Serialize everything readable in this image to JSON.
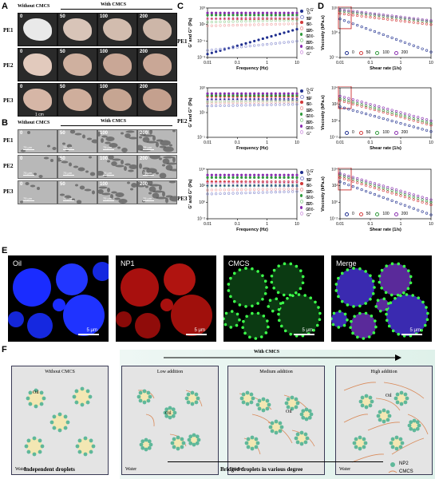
{
  "panels": {
    "A": {
      "label": "A",
      "header_left": "Without CMCS",
      "header_right": "With CMCS",
      "rows": [
        "PE1",
        "PE2",
        "PE3"
      ],
      "cols": [
        "0",
        "50",
        "100",
        "200"
      ],
      "scale": "1 cm"
    },
    "B": {
      "label": "B",
      "header_left": "Without CMCS",
      "header_right": "With CMCS",
      "rows": [
        "PE1",
        "PE2",
        "PE3"
      ],
      "cols": [
        "0",
        "50",
        "100",
        "200"
      ],
      "scale": "75 μm"
    },
    "C": {
      "label": "C"
    },
    "D": {
      "label": "D"
    },
    "E": {
      "label": "E",
      "images": [
        "Oil",
        "NP1",
        "CMCS",
        "Merge"
      ],
      "scale": "5 μm"
    },
    "F": {
      "label": "F",
      "arrow_label": "With CMCS",
      "stages": [
        "Without CMCS",
        "Low addition",
        "Medium addition",
        "High addition"
      ],
      "oil": "Oil",
      "water": "Water",
      "caption_left": "Independent droplets",
      "caption_right": "Bridged droplets in various degree",
      "legend": [
        "NP2",
        "CMCS"
      ]
    }
  },
  "colors": {
    "dark_blue": "#1f2f8f",
    "light_blue": "#8a8fd0",
    "red": "#d23a3a",
    "pink": "#f0a6a6",
    "green": "#2f9a3a",
    "light_green": "#9ad39a",
    "purple": "#8a2fb0",
    "lilac": "#d7a6e6",
    "np": "#5fb89a",
    "oil_fill": "#f3e7b3",
    "cmcs": "#d98a5a"
  },
  "chart_data": [
    {
      "type": "scatter",
      "panel": "C",
      "row": "PE1",
      "xscale": "log",
      "yscale": "log",
      "xlabel": "Frequency (Hz)",
      "ylabel": "G' and G'' (Pa)",
      "xlim": [
        0.01,
        10
      ],
      "ylim": [
        0.001,
        10000
      ],
      "xticks": [
        "0.01",
        "0.1",
        "1",
        "10"
      ],
      "yticks": [
        "10⁻³",
        "10⁻¹",
        "10¹",
        "10³"
      ],
      "legend": [
        "0-G'",
        "0-G''",
        "50-G'",
        "50-G''",
        "100-G'",
        "100-G''",
        "200-G'",
        "200-G''"
      ],
      "series": [
        {
          "name": "0-G'",
          "values": [
            0.003,
            10
          ]
        },
        {
          "name": "0-G''",
          "values": [
            0.01,
            0.2
          ]
        },
        {
          "name": "50-G'",
          "values": [
            300,
            300
          ]
        },
        {
          "name": "50-G''",
          "values": [
            30,
            60
          ]
        },
        {
          "name": "100-G'",
          "values": [
            1000,
            1000
          ]
        },
        {
          "name": "100-G''",
          "values": [
            100,
            200
          ]
        },
        {
          "name": "200-G'",
          "values": [
            2000,
            2000
          ]
        },
        {
          "name": "200-G''",
          "values": [
            300,
            500
          ]
        }
      ]
    },
    {
      "type": "scatter",
      "panel": "C",
      "row": "PE2",
      "xscale": "log",
      "yscale": "log",
      "xlabel": "Frequency (Hz)",
      "ylabel": "G' and G'' (Pa)",
      "xlim": [
        0.01,
        10
      ],
      "ylim": [
        0.1,
        100
      ],
      "xticks": [
        "0.01",
        "0.1",
        "1",
        "10"
      ],
      "yticks": [
        "10⁻¹",
        "10¹",
        "10²"
      ],
      "legend": [
        "0-G'",
        "0-G''",
        "50-G'",
        "50-G''",
        "100-G'",
        "100-G''",
        "200-G'",
        "200-G''"
      ],
      "series": [
        {
          "name": "0-G'",
          "values": [
            20,
            20
          ]
        },
        {
          "name": "0-G''",
          "values": [
            8,
            10
          ]
        },
        {
          "name": "50-G'",
          "values": [
            30,
            30
          ]
        },
        {
          "name": "50-G''",
          "values": [
            12,
            14
          ]
        },
        {
          "name": "100-G'",
          "values": [
            35,
            35
          ]
        },
        {
          "name": "100-G''",
          "values": [
            15,
            17
          ]
        },
        {
          "name": "200-G'",
          "values": [
            45,
            45
          ]
        },
        {
          "name": "200-G''",
          "values": [
            20,
            22
          ]
        }
      ]
    },
    {
      "type": "scatter",
      "panel": "C",
      "row": "PE3",
      "xscale": "log",
      "yscale": "log",
      "xlabel": "Frequency (Hz)",
      "ylabel": "G' and G'' (Pa)",
      "xlim": [
        0.01,
        10
      ],
      "ylim": [
        0.01,
        10000
      ],
      "xticks": [
        "0.01",
        "0.1",
        "1",
        "10"
      ],
      "yticks": [
        "10⁻²",
        "10⁰",
        "10²",
        "10⁴"
      ],
      "legend": [
        "0-G'",
        "0-G''",
        "50-G'",
        "50-G''",
        "100-G'",
        "100-G''",
        "200-G'",
        "200-G''"
      ],
      "series": [
        {
          "name": "0-G'",
          "values": [
            100,
            100
          ]
        },
        {
          "name": "0-G''",
          "values": [
            10,
            20
          ]
        },
        {
          "name": "50-G'",
          "values": [
            300,
            300
          ]
        },
        {
          "name": "50-G''",
          "values": [
            30,
            40
          ]
        },
        {
          "name": "100-G'",
          "values": [
            1000,
            1000
          ]
        },
        {
          "name": "100-G''",
          "values": [
            100,
            120
          ]
        },
        {
          "name": "200-G'",
          "values": [
            2000,
            2000
          ]
        },
        {
          "name": "200-G''",
          "values": [
            200,
            250
          ]
        }
      ]
    },
    {
      "type": "scatter",
      "panel": "D",
      "row": "PE1",
      "xscale": "log",
      "yscale": "log",
      "xlabel": "Shear rate (1/s)",
      "ylabel": "Viscosity (kPa.s)",
      "xlim": [
        0.01,
        10
      ],
      "ylim": [
        0.0001,
        100000
      ],
      "xticks": [
        "0.01",
        "0.1",
        "1",
        "10"
      ],
      "yticks": [
        "10⁻⁴",
        "10⁰",
        "10⁵"
      ],
      "legend": [
        "0",
        "50",
        "100",
        "200"
      ],
      "series": [
        {
          "name": "0",
          "values": [
            1000,
            0.001
          ]
        },
        {
          "name": "50",
          "values": [
            10000,
            100
          ]
        },
        {
          "name": "100",
          "values": [
            30000,
            300
          ]
        },
        {
          "name": "200",
          "values": [
            50000,
            500
          ]
        }
      ]
    },
    {
      "type": "scatter",
      "panel": "D",
      "row": "PE2",
      "xscale": "log",
      "yscale": "log",
      "xlabel": "Shear rate (1/s)",
      "ylabel": "Viscosity (kPa.s)",
      "xlim": [
        0.01,
        10
      ],
      "ylim": [
        0.01,
        10000
      ],
      "xticks": [
        "0.01",
        "0.1",
        "1",
        "10"
      ],
      "yticks": [
        "10⁻²",
        "10⁰",
        "10²",
        "10⁴"
      ],
      "legend": [
        "0",
        "50",
        "100",
        "200"
      ],
      "series": [
        {
          "name": "0",
          "values": [
            50,
            0.05
          ]
        },
        {
          "name": "50",
          "values": [
            300,
            0.3
          ]
        },
        {
          "name": "100",
          "values": [
            500,
            0.5
          ]
        },
        {
          "name": "200",
          "values": [
            1000,
            1
          ]
        }
      ]
    },
    {
      "type": "scatter",
      "panel": "D",
      "row": "PE3",
      "xscale": "log",
      "yscale": "log",
      "xlabel": "Shear rate (1/s)",
      "ylabel": "Viscosity (kPa.s)",
      "xlim": [
        0.01,
        10
      ],
      "ylim": [
        0.01,
        10000
      ],
      "xticks": [
        "0.01",
        "0.1",
        "1",
        "10"
      ],
      "yticks": [
        "10⁻²",
        "10⁰",
        "10²",
        "10⁴"
      ],
      "legend": [
        "0",
        "50",
        "100",
        "200"
      ],
      "series": [
        {
          "name": "0",
          "values": [
            300,
            0.03
          ]
        },
        {
          "name": "50",
          "values": [
            1000,
            0.5
          ]
        },
        {
          "name": "100",
          "values": [
            2000,
            1
          ]
        },
        {
          "name": "200",
          "values": [
            3000,
            2
          ]
        }
      ]
    }
  ]
}
